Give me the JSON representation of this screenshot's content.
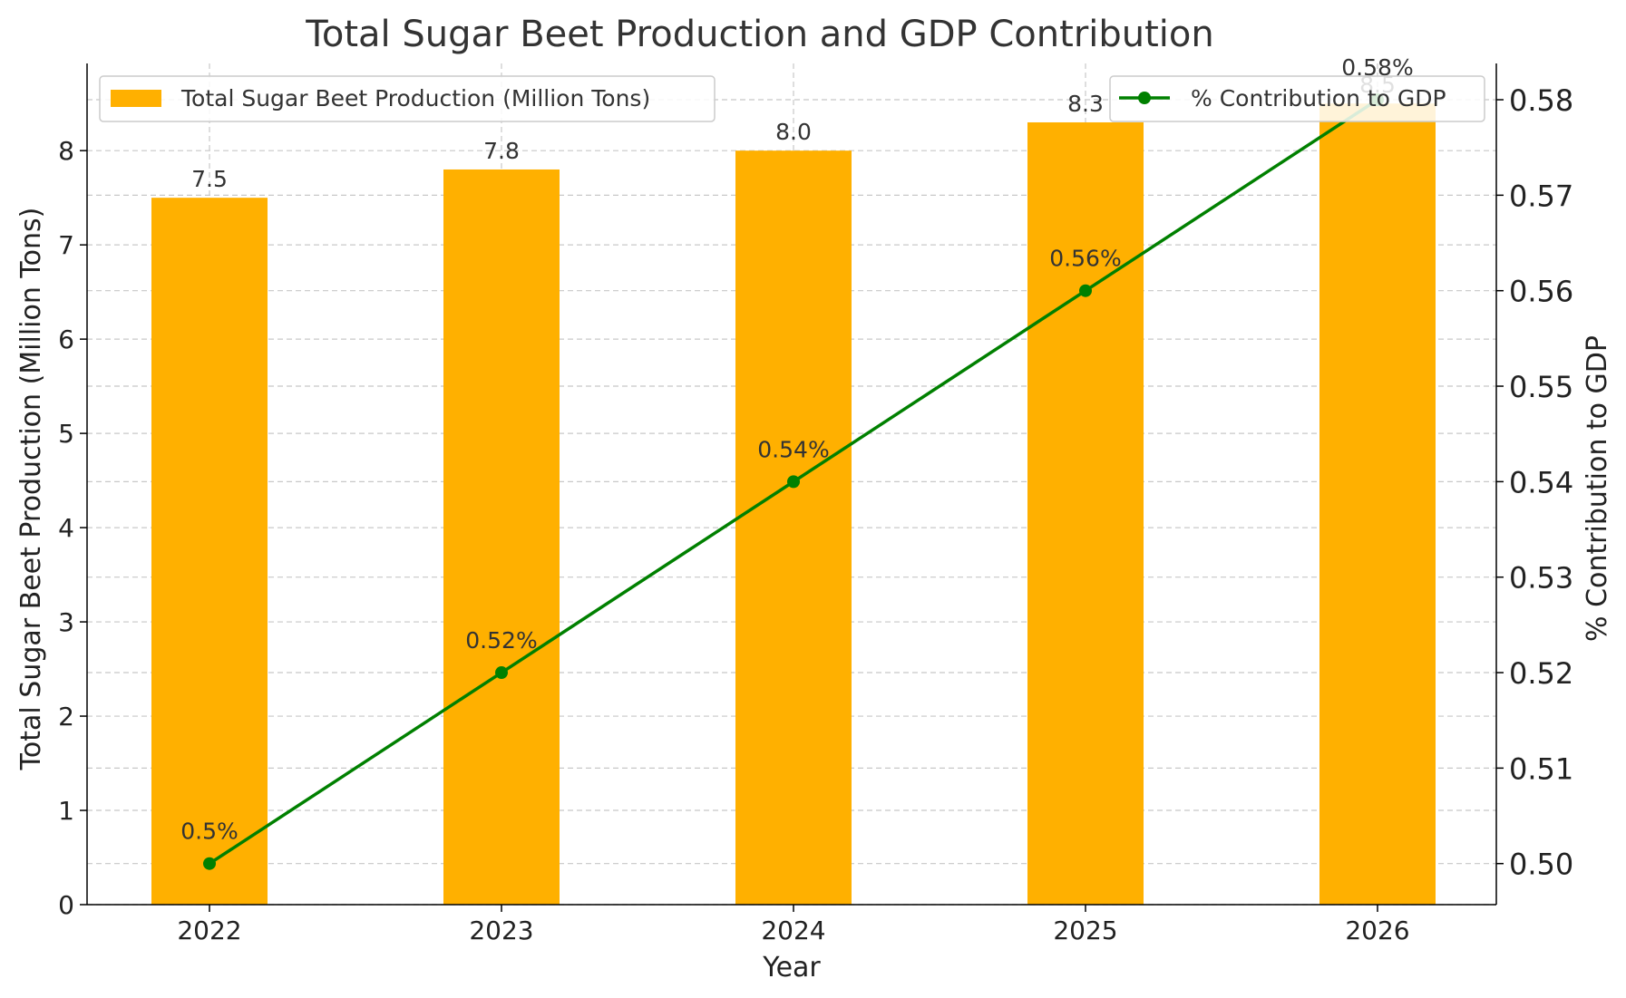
{
  "chart_data": {
    "type": "bar",
    "title": "Total Sugar Beet Production and GDP Contribution",
    "xlabel": "Year",
    "ylabel": "Total Sugar Beet Production (Million Tons)",
    "y2label": "% Contribution to GDP",
    "categories": [
      "2022",
      "2023",
      "2024",
      "2025",
      "2026"
    ],
    "ylim": [
      0,
      8.925
    ],
    "y2lim": [
      0.4957,
      0.5838
    ],
    "yticks": [
      0,
      1,
      2,
      3,
      4,
      5,
      6,
      7,
      8
    ],
    "y2ticks": [
      0.5,
      0.51,
      0.52,
      0.53,
      0.54,
      0.55,
      0.56,
      0.57,
      0.58
    ],
    "grid": true,
    "series": [
      {
        "name": "Total Sugar Beet Production (Million Tons)",
        "kind": "bar",
        "axis": "left",
        "color": "#ffb000",
        "values": [
          7.5,
          7.8,
          8.0,
          8.3,
          8.5
        ],
        "labels": [
          "7.5",
          "7.8",
          "8.0",
          "8.3",
          "8.5"
        ]
      },
      {
        "name": "% Contribution to GDP",
        "kind": "line",
        "axis": "right",
        "color": "#008000",
        "values": [
          0.5,
          0.52,
          0.54,
          0.56,
          0.58
        ],
        "labels": [
          "0.5%",
          "0.52%",
          "0.54%",
          "0.56%",
          "0.58%"
        ]
      }
    ],
    "legends": [
      "top-left",
      "top-right"
    ]
  }
}
